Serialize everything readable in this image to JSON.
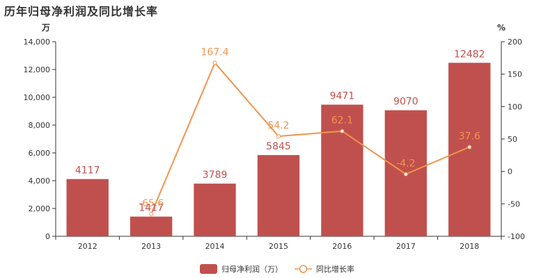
{
  "chart_data": {
    "type": "bar",
    "title": "历年归母净利润及同比增长率",
    "categories": [
      "2012",
      "2013",
      "2014",
      "2015",
      "2016",
      "2017",
      "2018"
    ],
    "series": [
      {
        "name": "归母净利润（万）",
        "type": "bar",
        "axis": "left",
        "values": [
          4117,
          1417,
          3789,
          5845,
          9471,
          9070,
          12482
        ],
        "labels": [
          "4117",
          "1417",
          "3789",
          "5845",
          "9471",
          "9070",
          "12482"
        ]
      },
      {
        "name": "同比增长率",
        "type": "line",
        "axis": "right",
        "values": [
          null,
          -65.6,
          167.4,
          54.2,
          62.1,
          -4.2,
          37.6
        ],
        "labels": [
          "",
          "-65.6",
          "167.4",
          "54.2",
          "62.1",
          "-4.2",
          "37.6"
        ]
      }
    ],
    "left_axis": {
      "unit": "万",
      "ylim": [
        0,
        14000
      ],
      "ticks": [
        0,
        2000,
        4000,
        6000,
        8000,
        10000,
        12000,
        14000
      ],
      "tick_labels": [
        "0",
        "2,000",
        "4,000",
        "6,000",
        "8,000",
        "10,000",
        "12,000",
        "14,000"
      ]
    },
    "right_axis": {
      "unit": "%",
      "ylim": [
        -100,
        200
      ],
      "ticks": [
        -100,
        -50,
        0,
        50,
        100,
        150,
        200
      ],
      "tick_labels": [
        "-100",
        "-50",
        "0",
        "50",
        "100",
        "150",
        "200"
      ]
    },
    "legend_position": "bottom-center",
    "grid": false,
    "colors": {
      "bar": "#c0504d",
      "line": "#f0944d",
      "text": "#333333"
    }
  }
}
